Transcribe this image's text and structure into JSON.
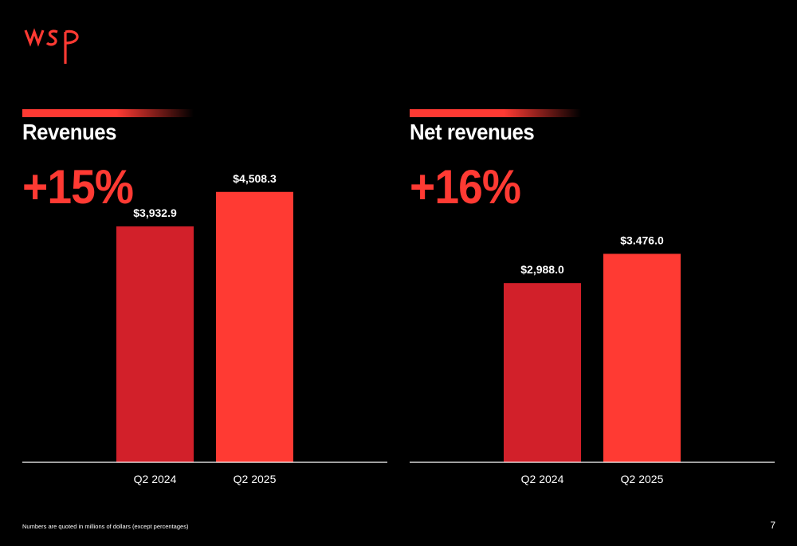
{
  "brand": {
    "logo_text": "wsp",
    "colors": {
      "accent": "#ff3a33",
      "bar_prior": "#d2202a",
      "bar_current": "#ff3a33",
      "background": "#000000",
      "axis": "#ffffff"
    }
  },
  "panels": [
    {
      "title": "Revenues",
      "growth": "+15%"
    },
    {
      "title": "Net revenues",
      "growth": "+16%"
    }
  ],
  "chart_data": [
    {
      "type": "bar",
      "title": "Revenues",
      "categories": [
        "Q2 2024",
        "Q2 2025"
      ],
      "values": [
        3932.9,
        4508.3
      ],
      "data_labels": [
        "$3,932.9",
        "$4,508.3"
      ],
      "bar_colors": [
        "#d2202a",
        "#ff3a33"
      ],
      "ylim": [
        0,
        5050
      ],
      "grid": false,
      "annotation": "+15%"
    },
    {
      "type": "bar",
      "title": "Net revenues",
      "categories": [
        "Q2 2024",
        "Q2 2025"
      ],
      "values": [
        2988.0,
        3476.0
      ],
      "data_labels": [
        "$2,988.0",
        "$3.476.0"
      ],
      "bar_colors": [
        "#d2202a",
        "#ff3a33"
      ],
      "ylim": [
        0,
        5050
      ],
      "grid": false,
      "annotation": "+16%"
    }
  ],
  "footer": {
    "note": "Numbers are quoted in millions of dollars (except percentages)",
    "page_number": "7"
  }
}
